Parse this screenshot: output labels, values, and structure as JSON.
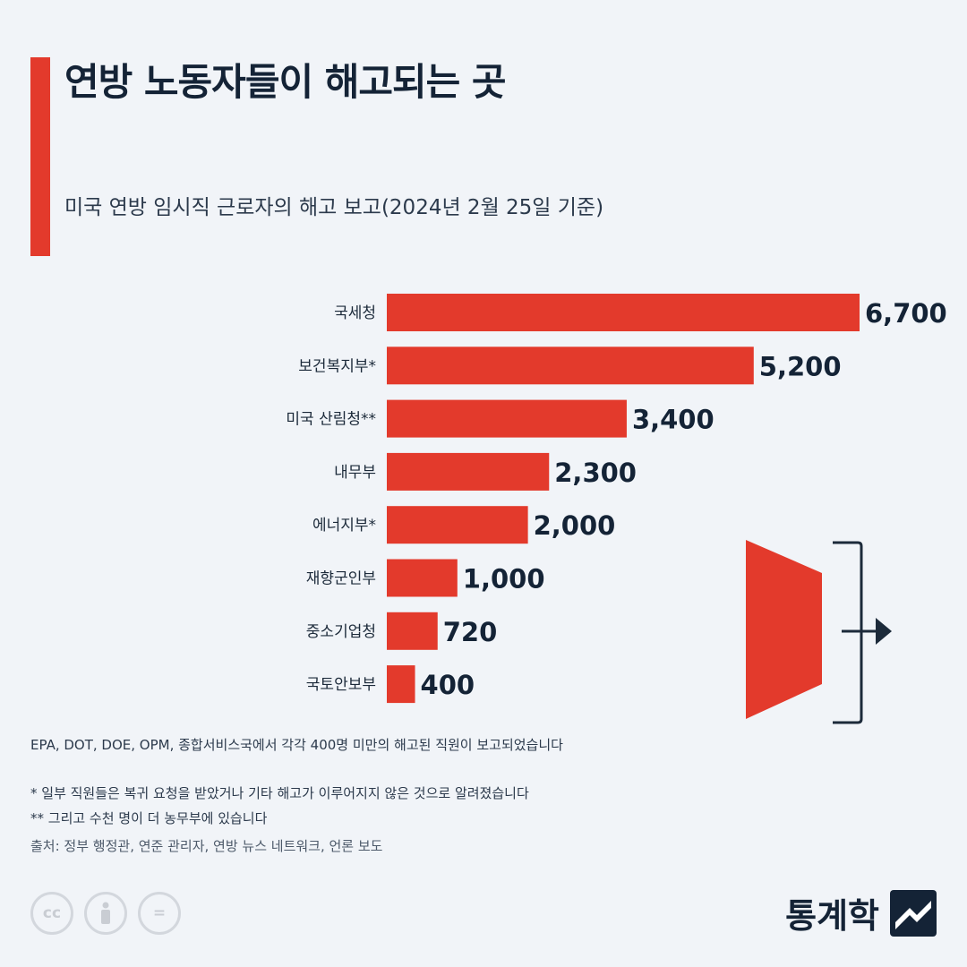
{
  "header": {
    "title": "연방 노동자들이 해고되는 곳",
    "subtitle": "미국 연방 임시직 근로자의 해고 보고(2024년 2월 25일 기준)"
  },
  "chart_data": {
    "type": "bar",
    "orientation": "horizontal",
    "categories": [
      "국세청",
      "보건복지부*",
      "미국 산림청**",
      "내무부",
      "에너지부*",
      "재향군인부",
      "중소기업청",
      "국토안보부"
    ],
    "values": [
      6700,
      5200,
      3400,
      2300,
      2000,
      1000,
      720,
      400
    ],
    "value_labels": [
      "6,700",
      "5,200",
      "3,400",
      "2,300",
      "2,000",
      "1,000",
      "720",
      "400"
    ],
    "xlim": [
      0,
      6700
    ],
    "bar_color": "#e33a2c",
    "grid": false,
    "legend": "none"
  },
  "notes": {
    "other_agencies": "EPA, DOT, DOE, OPM, 종합서비스국에서 각각 400명 미만의 해고된 직원이 보고되었습니다",
    "footnote_1": "* 일부 직원들은 복귀 요청을 받았거나 기타 해고가 이루어지지 않은 것으로 알려졌습니다",
    "footnote_2": "** 그리고 수천 명이 더 농무부에 있습니다",
    "source": "출처: 정부 행정관, 연준 관리자, 연방 뉴스 네트워크, 언론 보도"
  },
  "license_icons": [
    "cc",
    "by",
    "nd"
  ],
  "brand": {
    "name": "통계학",
    "logo_icon": "statista-logo-icon"
  },
  "colors": {
    "accent": "#e33a2c",
    "background": "#f1f4f8",
    "text": "#142336"
  }
}
